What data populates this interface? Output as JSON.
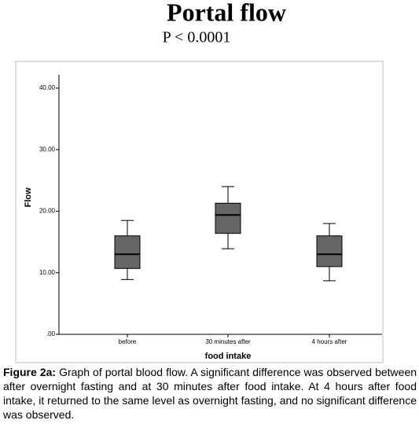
{
  "chart_data": {
    "type": "box",
    "title": "Portal flow",
    "subtitle": "P < 0.0001",
    "y_label": "Flow",
    "x_label": "food intake",
    "categories": [
      "before",
      "30 minutes after",
      "4 hours after"
    ],
    "max": [
      18.5,
      24.0,
      18.0
    ],
    "q3": [
      16.0,
      21.3,
      16.0
    ],
    "median": [
      13.0,
      19.4,
      13.0
    ],
    "q1": [
      10.7,
      16.4,
      11.0
    ],
    "min": [
      8.9,
      13.9,
      8.7
    ],
    "color": "#666666",
    "ylim": [
      0,
      40
    ],
    "yticks": [
      {
        "value": 0,
        "label": ".00"
      },
      {
        "value": 10,
        "label": "10.00"
      },
      {
        "value": 20,
        "label": "20.00"
      },
      {
        "value": 30,
        "label": "30.00"
      },
      {
        "value": 40,
        "label": "40.00"
      }
    ]
  },
  "caption": {
    "label": "Figure 2a:",
    "text": " Graph of portal blood flow. A significant difference was observed between after overnight fasting and at 30 minutes after food intake. At 4 hours after food intake, it returned to the same level as overnight fasting, and no significant difference was observed."
  }
}
